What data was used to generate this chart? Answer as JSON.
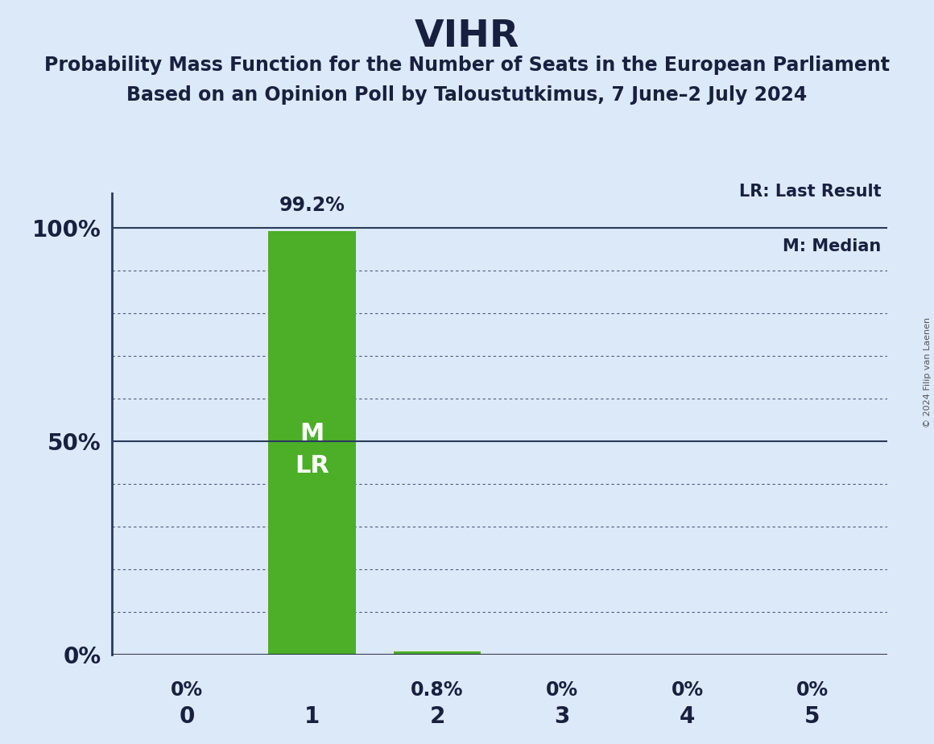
{
  "title": "VIHR",
  "subtitle1": "Probability Mass Function for the Number of Seats in the European Parliament",
  "subtitle2": "Based on an Opinion Poll by Taloustutkimus, 7 June–2 July 2024",
  "copyright": "© 2024 Filip van Laenen",
  "categories": [
    0,
    1,
    2,
    3,
    4,
    5
  ],
  "values": [
    0.0,
    0.992,
    0.008,
    0.0,
    0.0,
    0.0
  ],
  "bar_labels": [
    "0%",
    "99.2%",
    "0.8%",
    "0%",
    "0%",
    "0%"
  ],
  "bar_color": "#4caf27",
  "background_color": "#dce9f8",
  "text_color": "#182040",
  "ylabel_ticks": [
    "0%",
    "50%",
    "100%"
  ],
  "ytick_vals": [
    0.0,
    0.5,
    1.0
  ],
  "median": 1,
  "last_result": 1,
  "legend_lr": "LR: Last Result",
  "legend_m": "M: Median",
  "bar_label_inside_text": "M\nLR",
  "bar_label_inside_color": "#ffffff",
  "solid_line_at": [
    0.5,
    1.0
  ],
  "grid_dotted_at": [
    0.1,
    0.2,
    0.3,
    0.4,
    0.6,
    0.7,
    0.8,
    0.9
  ]
}
